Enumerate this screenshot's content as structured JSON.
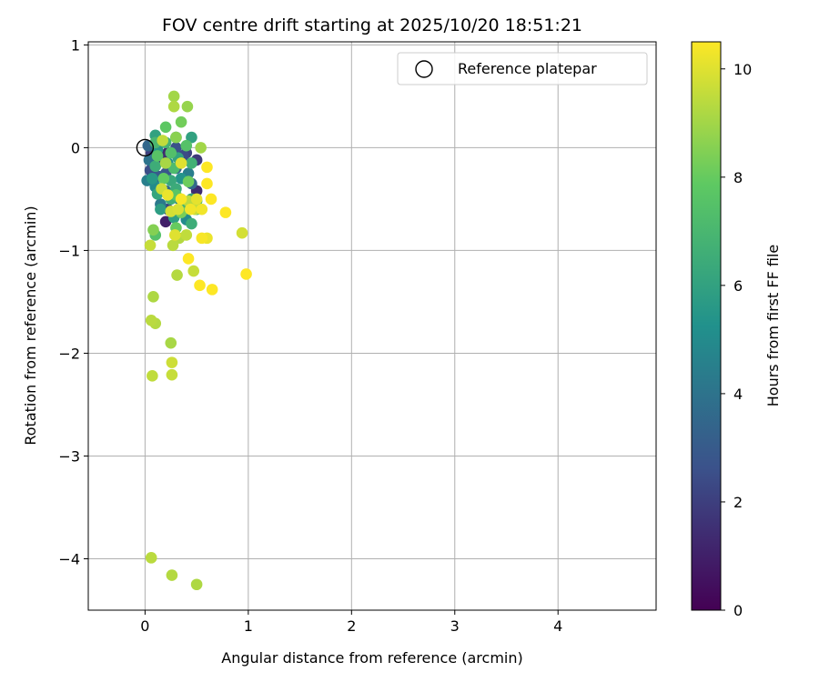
{
  "chart_data": {
    "type": "scatter",
    "title": "FOV centre drift starting at 2025/10/20 18:51:21",
    "xlabel": "Angular distance from reference (arcmin)",
    "ylabel": "Rotation from reference (arcmin)",
    "xlim": [
      -0.55,
      4.95
    ],
    "ylim": [
      -4.5,
      1.03
    ],
    "xticks": [
      0,
      1,
      2,
      3,
      4
    ],
    "yticks": [
      1,
      0,
      -1,
      -2,
      -3,
      -4
    ],
    "grid": true,
    "legend": {
      "location": "top-right",
      "entries": [
        {
          "label": "Reference platepar",
          "marker": "open-circle"
        }
      ]
    },
    "reference_point": {
      "x": 0,
      "y": 0
    },
    "colorbar": {
      "label": "Hours from first FF file",
      "min": 0,
      "max": 10.5,
      "ticks": [
        0,
        2,
        4,
        6,
        8,
        10
      ],
      "colormap": [
        "#440154",
        "#3b528b",
        "#21918c",
        "#5ec962",
        "#fde725"
      ]
    },
    "points": [
      {
        "x": 0.03,
        "y": 0.02,
        "h": 3.5
      },
      {
        "x": 0.06,
        "y": -0.05,
        "h": 2.0
      },
      {
        "x": 0.04,
        "y": -0.12,
        "h": 4.0
      },
      {
        "x": 0.05,
        "y": -0.22,
        "h": 2.5
      },
      {
        "x": 0.02,
        "y": -0.32,
        "h": 4.5
      },
      {
        "x": 0.1,
        "y": 0.12,
        "h": 6.0
      },
      {
        "x": 0.12,
        "y": -0.02,
        "h": 5.5
      },
      {
        "x": 0.15,
        "y": -0.1,
        "h": 1.5
      },
      {
        "x": 0.1,
        "y": -0.18,
        "h": 6.5
      },
      {
        "x": 0.13,
        "y": -0.28,
        "h": 3.0
      },
      {
        "x": 0.1,
        "y": -0.38,
        "h": 5.0
      },
      {
        "x": 0.12,
        "y": -0.45,
        "h": 6.2
      },
      {
        "x": 0.15,
        "y": -0.55,
        "h": 4.2
      },
      {
        "x": 0.15,
        "y": -0.6,
        "h": 5.8
      },
      {
        "x": 0.2,
        "y": 0.05,
        "h": 6.8
      },
      {
        "x": 0.22,
        "y": -0.05,
        "h": 1.2
      },
      {
        "x": 0.22,
        "y": -0.15,
        "h": 5.2
      },
      {
        "x": 0.2,
        "y": -0.25,
        "h": 2.8
      },
      {
        "x": 0.25,
        "y": -0.32,
        "h": 6.3
      },
      {
        "x": 0.2,
        "y": -0.42,
        "h": 3.8
      },
      {
        "x": 0.25,
        "y": -0.5,
        "h": 6.6
      },
      {
        "x": 0.22,
        "y": -0.6,
        "h": 2.2
      },
      {
        "x": 0.2,
        "y": -0.72,
        "h": 1.0
      },
      {
        "x": 0.28,
        "y": -0.68,
        "h": 5.9
      },
      {
        "x": 0.3,
        "y": 0.1,
        "h": 4.8
      },
      {
        "x": 0.3,
        "y": 0.0,
        "h": 2.6
      },
      {
        "x": 0.32,
        "y": -0.1,
        "h": 6.1
      },
      {
        "x": 0.3,
        "y": -0.2,
        "h": 3.3
      },
      {
        "x": 0.35,
        "y": -0.3,
        "h": 5.4
      },
      {
        "x": 0.3,
        "y": -0.4,
        "h": 6.4
      },
      {
        "x": 0.33,
        "y": -0.5,
        "h": 4.6
      },
      {
        "x": 0.38,
        "y": -0.6,
        "h": 6.9
      },
      {
        "x": 0.4,
        "y": -0.7,
        "h": 5.0
      },
      {
        "x": 0.45,
        "y": 0.1,
        "h": 6.0
      },
      {
        "x": 0.4,
        "y": -0.05,
        "h": 2.1
      },
      {
        "x": 0.45,
        "y": -0.15,
        "h": 6.7
      },
      {
        "x": 0.42,
        "y": -0.25,
        "h": 4.4
      },
      {
        "x": 0.45,
        "y": -0.35,
        "h": 3.6
      },
      {
        "x": 0.5,
        "y": -0.42,
        "h": 1.4
      },
      {
        "x": 0.5,
        "y": -0.12,
        "h": 1.8
      },
      {
        "x": 0.45,
        "y": -0.5,
        "h": 6.2
      },
      {
        "x": 0.45,
        "y": -0.74,
        "h": 6.5
      },
      {
        "x": 0.37,
        "y": -0.08,
        "h": 2.4
      },
      {
        "x": 0.07,
        "y": -0.3,
        "h": 5.6
      },
      {
        "x": 0.1,
        "y": 0.05,
        "h": 7.0
      },
      {
        "x": 0.12,
        "y": -0.08,
        "h": 7.6
      },
      {
        "x": 0.2,
        "y": 0.2,
        "h": 7.8
      },
      {
        "x": 0.35,
        "y": 0.25,
        "h": 8.2
      },
      {
        "x": 0.25,
        "y": -0.05,
        "h": 7.4
      },
      {
        "x": 0.18,
        "y": -0.3,
        "h": 7.9
      },
      {
        "x": 0.28,
        "y": -0.2,
        "h": 7.2
      },
      {
        "x": 0.4,
        "y": 0.02,
        "h": 7.5
      },
      {
        "x": 0.42,
        "y": -0.33,
        "h": 8.1
      },
      {
        "x": 0.3,
        "y": -0.46,
        "h": 7.7
      },
      {
        "x": 0.5,
        "y": -0.52,
        "h": 7.3
      },
      {
        "x": 0.35,
        "y": -0.63,
        "h": 8.3
      },
      {
        "x": 0.5,
        "y": -0.6,
        "h": 7.1
      },
      {
        "x": 0.1,
        "y": -0.85,
        "h": 7.5
      },
      {
        "x": 0.08,
        "y": -0.8,
        "h": 8.5
      },
      {
        "x": 0.3,
        "y": -0.78,
        "h": 8.0
      },
      {
        "x": 0.28,
        "y": 0.5,
        "h": 9.0
      },
      {
        "x": 0.28,
        "y": 0.4,
        "h": 9.2
      },
      {
        "x": 0.41,
        "y": 0.4,
        "h": 8.8
      },
      {
        "x": 0.3,
        "y": 0.1,
        "h": 8.6
      },
      {
        "x": 0.17,
        "y": 0.07,
        "h": 9.5
      },
      {
        "x": 0.2,
        "y": -0.15,
        "h": 9.1
      },
      {
        "x": 0.35,
        "y": -0.15,
        "h": 10.0
      },
      {
        "x": 0.16,
        "y": -0.4,
        "h": 9.7
      },
      {
        "x": 0.22,
        "y": -0.46,
        "h": 10.2
      },
      {
        "x": 0.35,
        "y": -0.5,
        "h": 10.4
      },
      {
        "x": 0.42,
        "y": -0.52,
        "h": 9.4
      },
      {
        "x": 0.5,
        "y": -0.5,
        "h": 10.1
      },
      {
        "x": 0.32,
        "y": -0.6,
        "h": 9.9
      },
      {
        "x": 0.44,
        "y": -0.6,
        "h": 10.3
      },
      {
        "x": 0.48,
        "y": -0.6,
        "h": 9.6
      },
      {
        "x": 0.55,
        "y": -0.6,
        "h": 10.3
      },
      {
        "x": 0.25,
        "y": -0.62,
        "h": 9.8
      },
      {
        "x": 0.29,
        "y": -0.85,
        "h": 10.0
      },
      {
        "x": 0.33,
        "y": -0.88,
        "h": 9.3
      },
      {
        "x": 0.4,
        "y": -0.85,
        "h": 9.5
      },
      {
        "x": 0.27,
        "y": -0.95,
        "h": 9.4
      },
      {
        "x": 0.05,
        "y": -0.95,
        "h": 9.6
      },
      {
        "x": 0.55,
        "y": -0.88,
        "h": 10.4
      },
      {
        "x": 0.6,
        "y": -0.88,
        "h": 10.2
      },
      {
        "x": 0.54,
        "y": 0.0,
        "h": 9.0
      },
      {
        "x": 0.6,
        "y": -0.19,
        "h": 10.5
      },
      {
        "x": 0.6,
        "y": -0.35,
        "h": 10.5
      },
      {
        "x": 0.64,
        "y": -0.5,
        "h": 10.5
      },
      {
        "x": 0.78,
        "y": -0.63,
        "h": 10.5
      },
      {
        "x": 0.94,
        "y": -0.83,
        "h": 9.8
      },
      {
        "x": 0.98,
        "y": -1.23,
        "h": 10.5
      },
      {
        "x": 0.42,
        "y": -1.08,
        "h": 10.5
      },
      {
        "x": 0.47,
        "y": -1.2,
        "h": 9.6
      },
      {
        "x": 0.31,
        "y": -1.24,
        "h": 9.3
      },
      {
        "x": 0.53,
        "y": -1.34,
        "h": 10.5
      },
      {
        "x": 0.65,
        "y": -1.38,
        "h": 10.5
      },
      {
        "x": 0.08,
        "y": -1.45,
        "h": 9.2
      },
      {
        "x": 0.06,
        "y": -1.68,
        "h": 9.4
      },
      {
        "x": 0.1,
        "y": -1.71,
        "h": 9.3
      },
      {
        "x": 0.25,
        "y": -1.9,
        "h": 9.1
      },
      {
        "x": 0.26,
        "y": -2.09,
        "h": 9.7
      },
      {
        "x": 0.26,
        "y": -2.21,
        "h": 9.6
      },
      {
        "x": 0.07,
        "y": -2.22,
        "h": 9.5
      },
      {
        "x": 0.06,
        "y": -3.99,
        "h": 9.4
      },
      {
        "x": 0.26,
        "y": -4.16,
        "h": 9.3
      },
      {
        "x": 0.5,
        "y": -4.25,
        "h": 9.2
      }
    ]
  }
}
